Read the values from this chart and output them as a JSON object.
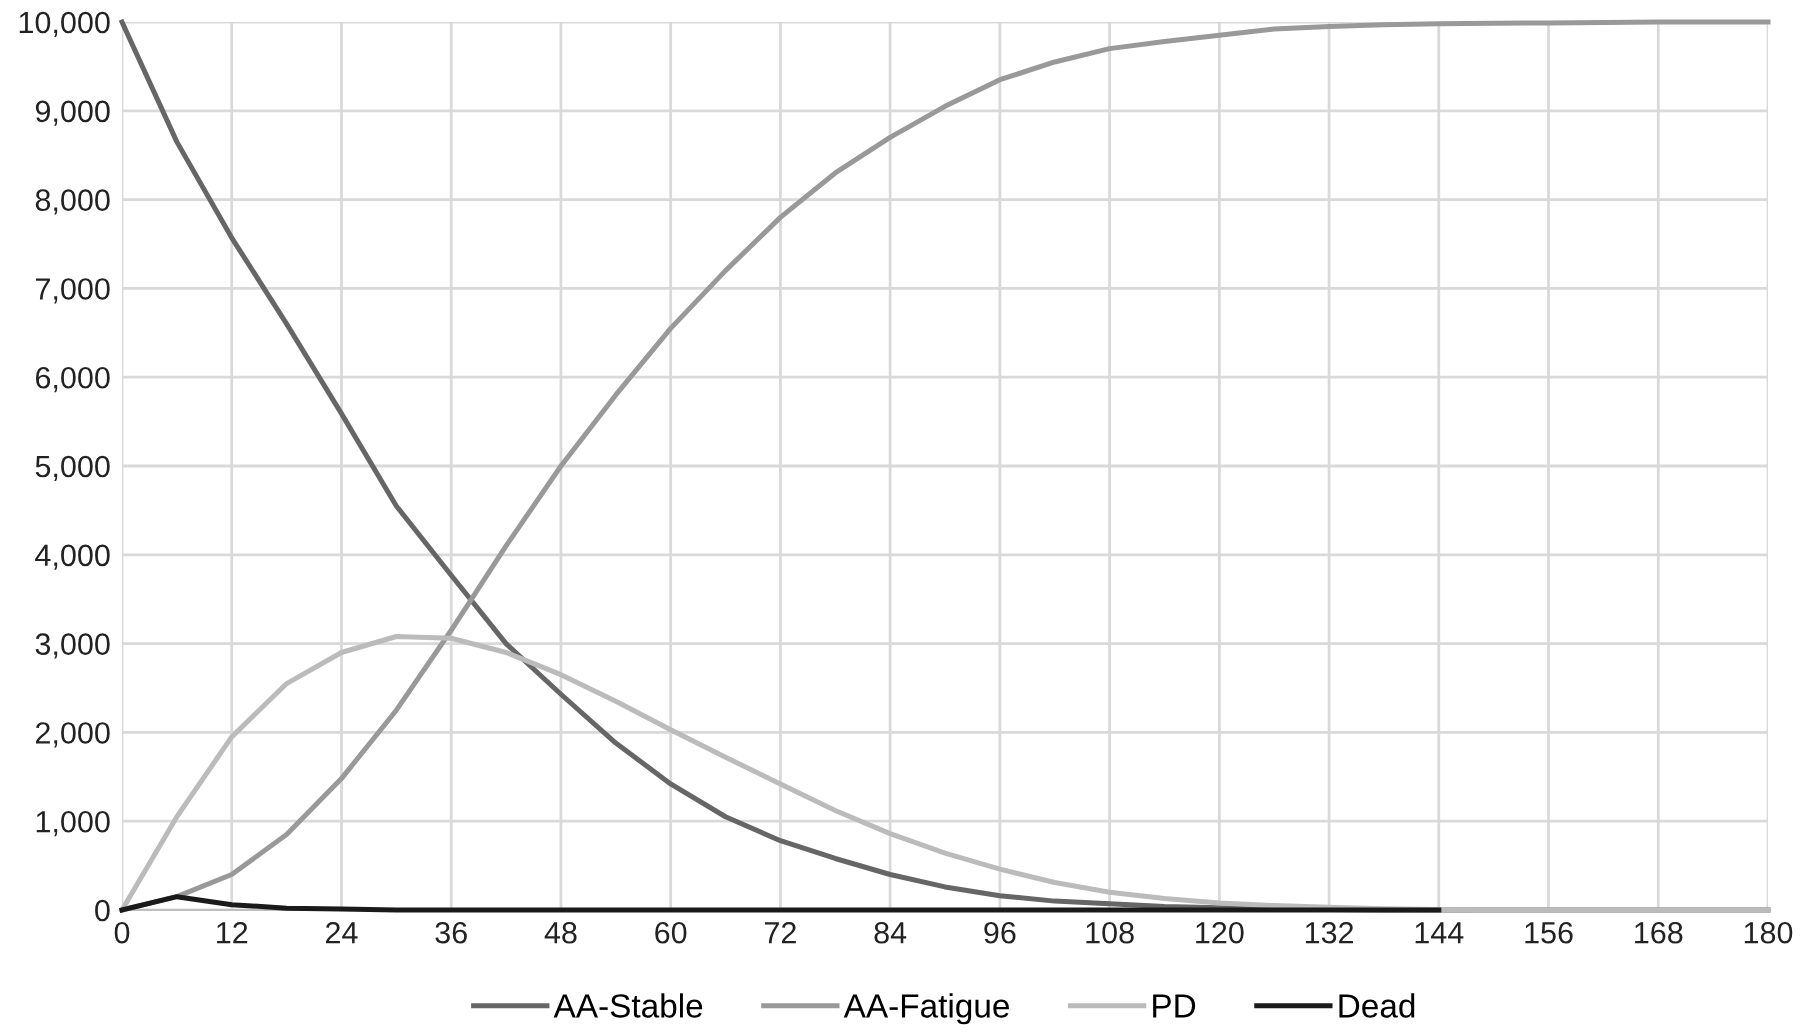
{
  "chart_data": {
    "type": "line",
    "x": [
      0,
      6,
      12,
      18,
      24,
      30,
      36,
      42,
      48,
      54,
      60,
      66,
      72,
      78,
      84,
      90,
      96,
      102,
      108,
      114,
      120,
      126,
      132,
      138,
      144,
      150,
      156,
      162,
      168,
      174,
      180
    ],
    "series": [
      {
        "name": "AA-Stable",
        "color": "#666666",
        "values": [
          10000,
          8650,
          7570,
          6600,
          5590,
          4550,
          3770,
          3000,
          2430,
          1880,
          1420,
          1050,
          780,
          580,
          400,
          260,
          160,
          100,
          70,
          40,
          25,
          10,
          5,
          0,
          0,
          0,
          0,
          0,
          0,
          0,
          0
        ]
      },
      {
        "name": "AA-Fatigue",
        "color": "#999999",
        "values": [
          0,
          150,
          400,
          850,
          1480,
          2250,
          3150,
          4100,
          5000,
          5800,
          6550,
          7200,
          7800,
          8300,
          8700,
          9050,
          9350,
          9550,
          9700,
          9780,
          9850,
          9920,
          9950,
          9970,
          9980,
          9985,
          9990,
          9995,
          10000,
          10000,
          10000
        ]
      },
      {
        "name": "PD",
        "color": "#bbbbbb",
        "values": [
          0,
          1050,
          1950,
          2550,
          2900,
          3080,
          3060,
          2900,
          2650,
          2350,
          2030,
          1720,
          1420,
          1120,
          860,
          640,
          460,
          310,
          200,
          130,
          80,
          50,
          30,
          15,
          5,
          0,
          0,
          0,
          0,
          0,
          0
        ]
      },
      {
        "name": "Dead",
        "color": "#1a1a1a",
        "values": [
          0,
          150,
          60,
          20,
          10,
          0,
          0,
          0,
          0,
          0,
          0,
          0,
          0,
          0,
          0,
          0,
          0,
          0,
          0,
          0,
          0,
          0,
          0,
          0,
          0,
          null,
          null,
          null,
          null,
          null,
          null
        ]
      }
    ],
    "xlim": [
      0,
      180
    ],
    "xticks": [
      0,
      12,
      24,
      36,
      48,
      60,
      72,
      84,
      96,
      108,
      120,
      132,
      144,
      156,
      168,
      180
    ],
    "ylim": [
      0,
      10000
    ],
    "yticks": [
      {
        "value": 0,
        "label": "0"
      },
      {
        "value": 1000,
        "label": "1,000"
      },
      {
        "value": 2000,
        "label": "2,000"
      },
      {
        "value": 3000,
        "label": "3,000"
      },
      {
        "value": 4000,
        "label": "4,000"
      },
      {
        "value": 5000,
        "label": "5,000"
      },
      {
        "value": 6000,
        "label": "6,000"
      },
      {
        "value": 7000,
        "label": "7,000"
      },
      {
        "value": 8000,
        "label": "8,000"
      },
      {
        "value": 9000,
        "label": "9,000"
      },
      {
        "value": 10000,
        "label": "10,000"
      }
    ],
    "grid": true,
    "legend": "bottom",
    "marker": "none",
    "line_style": "solid"
  }
}
